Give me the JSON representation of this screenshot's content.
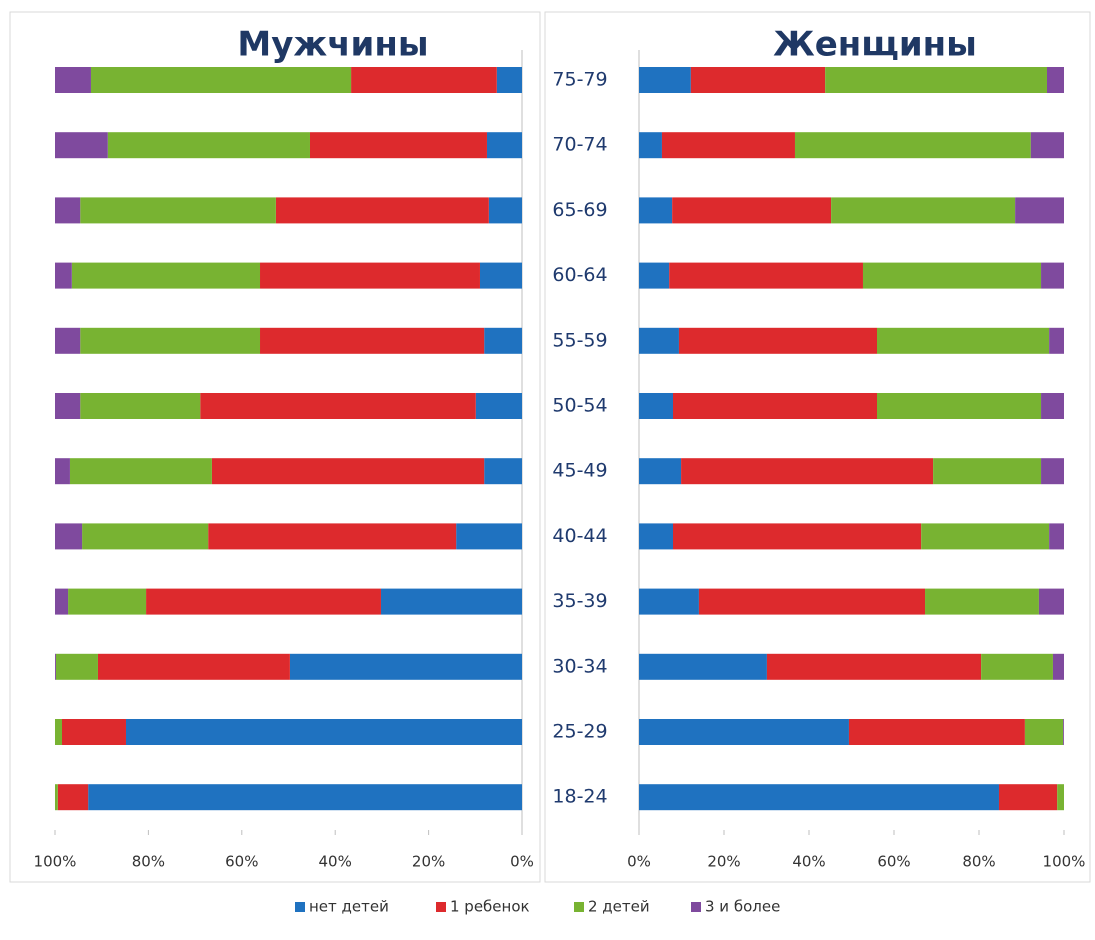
{
  "chart_data": {
    "type": "bar",
    "orientation": "horizontal",
    "stacked": true,
    "categories": [
      "75-79",
      "70-74",
      "65-69",
      "60-64",
      "55-59",
      "50-54",
      "45-49",
      "40-44",
      "35-39",
      "30-34",
      "25-29",
      "18-24"
    ],
    "series": [
      {
        "name": "нет детей",
        "color": "#1f72c0"
      },
      {
        "name": "1 ребенок",
        "color": "#dd2a2d"
      },
      {
        "name": "2 детей",
        "color": "#78b332"
      },
      {
        "name": "3 и более",
        "color": "#7f4a9e"
      }
    ],
    "panels": [
      {
        "title": "Мужчины",
        "xlim": [
          100,
          0
        ],
        "xticks": [
          {
            "value": 100,
            "label": "100%"
          },
          {
            "value": 80,
            "label": "80%"
          },
          {
            "value": 60,
            "label": "60%"
          },
          {
            "value": 40,
            "label": "40%"
          },
          {
            "value": 20,
            "label": "20%"
          },
          {
            "value": 0,
            "label": "0%"
          }
        ],
        "values": [
          [
            5.4,
            7.5,
            7.1,
            9.0,
            8.1,
            9.9,
            8.1,
            14.1,
            30.2,
            49.7,
            84.8,
            92.9
          ],
          [
            31.2,
            37.9,
            45.6,
            47.1,
            48.0,
            59.0,
            58.3,
            53.1,
            50.3,
            41.1,
            13.7,
            6.5
          ],
          [
            55.7,
            43.3,
            41.9,
            40.3,
            38.5,
            25.7,
            30.4,
            27.0,
            16.7,
            9.0,
            1.5,
            0.6
          ],
          [
            7.7,
            11.3,
            5.4,
            3.6,
            5.4,
            5.4,
            3.2,
            5.8,
            2.8,
            0.2,
            0,
            0
          ]
        ]
      },
      {
        "title": "Женщины",
        "xlim": [
          0,
          100
        ],
        "xticks": [
          {
            "value": 0,
            "label": "0%"
          },
          {
            "value": 20,
            "label": "20%"
          },
          {
            "value": 40,
            "label": "40%"
          },
          {
            "value": 60,
            "label": "60%"
          },
          {
            "value": 80,
            "label": "80%"
          },
          {
            "value": 100,
            "label": "100%"
          }
        ],
        "values": [
          [
            12.2,
            5.4,
            7.8,
            7.1,
            9.4,
            8.0,
            9.9,
            8.0,
            14.1,
            30.1,
            49.4,
            84.7
          ],
          [
            31.6,
            31.3,
            37.4,
            45.6,
            46.6,
            48.0,
            59.3,
            58.4,
            53.2,
            50.4,
            41.4,
            13.7
          ],
          [
            52.2,
            55.5,
            43.3,
            41.9,
            40.5,
            38.6,
            25.4,
            30.1,
            26.8,
            16.9,
            9.0,
            1.6
          ],
          [
            4.0,
            7.8,
            11.5,
            5.4,
            3.5,
            5.4,
            5.4,
            3.5,
            5.9,
            2.6,
            0.2,
            0
          ]
        ]
      }
    ]
  }
}
